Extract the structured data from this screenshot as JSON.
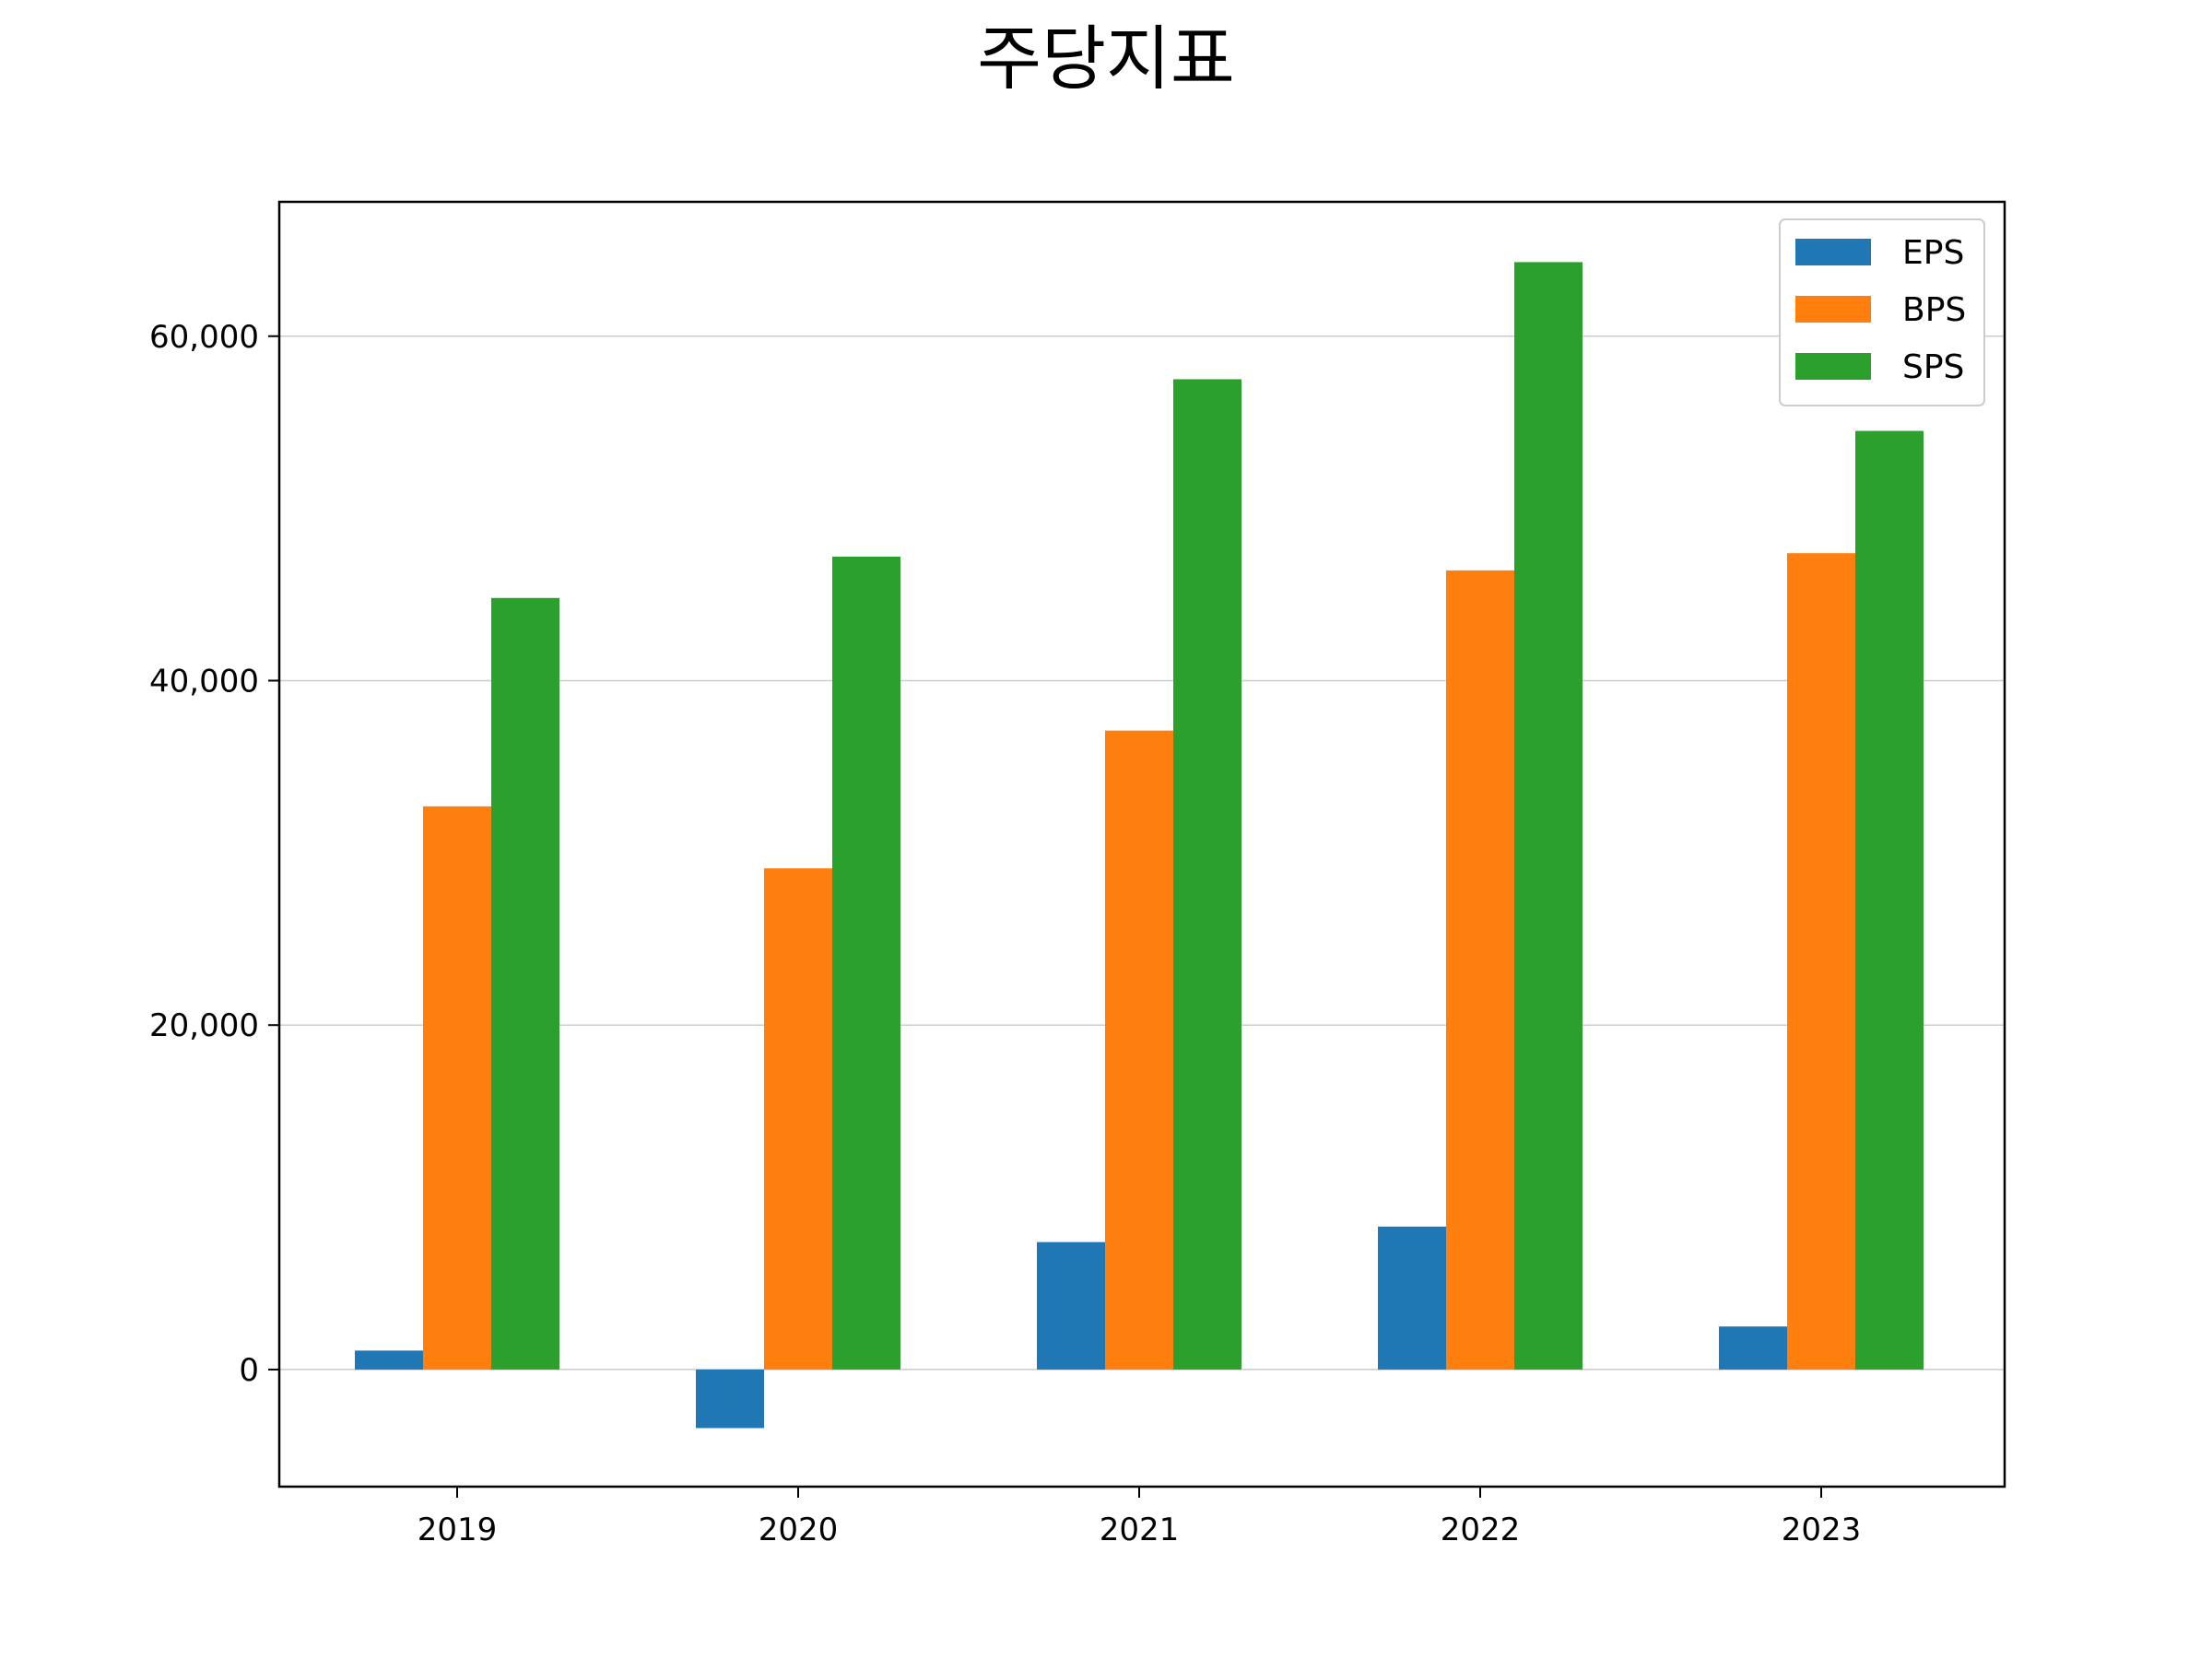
{
  "chart_data": {
    "type": "bar",
    "title": "주당지표",
    "xlabel": "",
    "ylabel": "",
    "categories": [
      "2019",
      "2020",
      "2021",
      "2022",
      "2023"
    ],
    "series": [
      {
        "name": "EPS",
        "color": "#1f77b4",
        "values": [
          1100,
          -3400,
          7400,
          8300,
          2500
        ]
      },
      {
        "name": "BPS",
        "color": "#ff7f0e",
        "values": [
          32700,
          29100,
          37100,
          46400,
          47400
        ]
      },
      {
        "name": "SPS",
        "color": "#2ca02c",
        "values": [
          44800,
          47200,
          57500,
          64300,
          54500
        ]
      }
    ],
    "ylim": [
      -6800,
      67800
    ],
    "yticks": [
      0,
      20000,
      40000,
      60000
    ],
    "ytick_labels": [
      "0",
      "20,000",
      "40,000",
      "60,000"
    ],
    "grid": "y",
    "legend_position": "top-right"
  }
}
